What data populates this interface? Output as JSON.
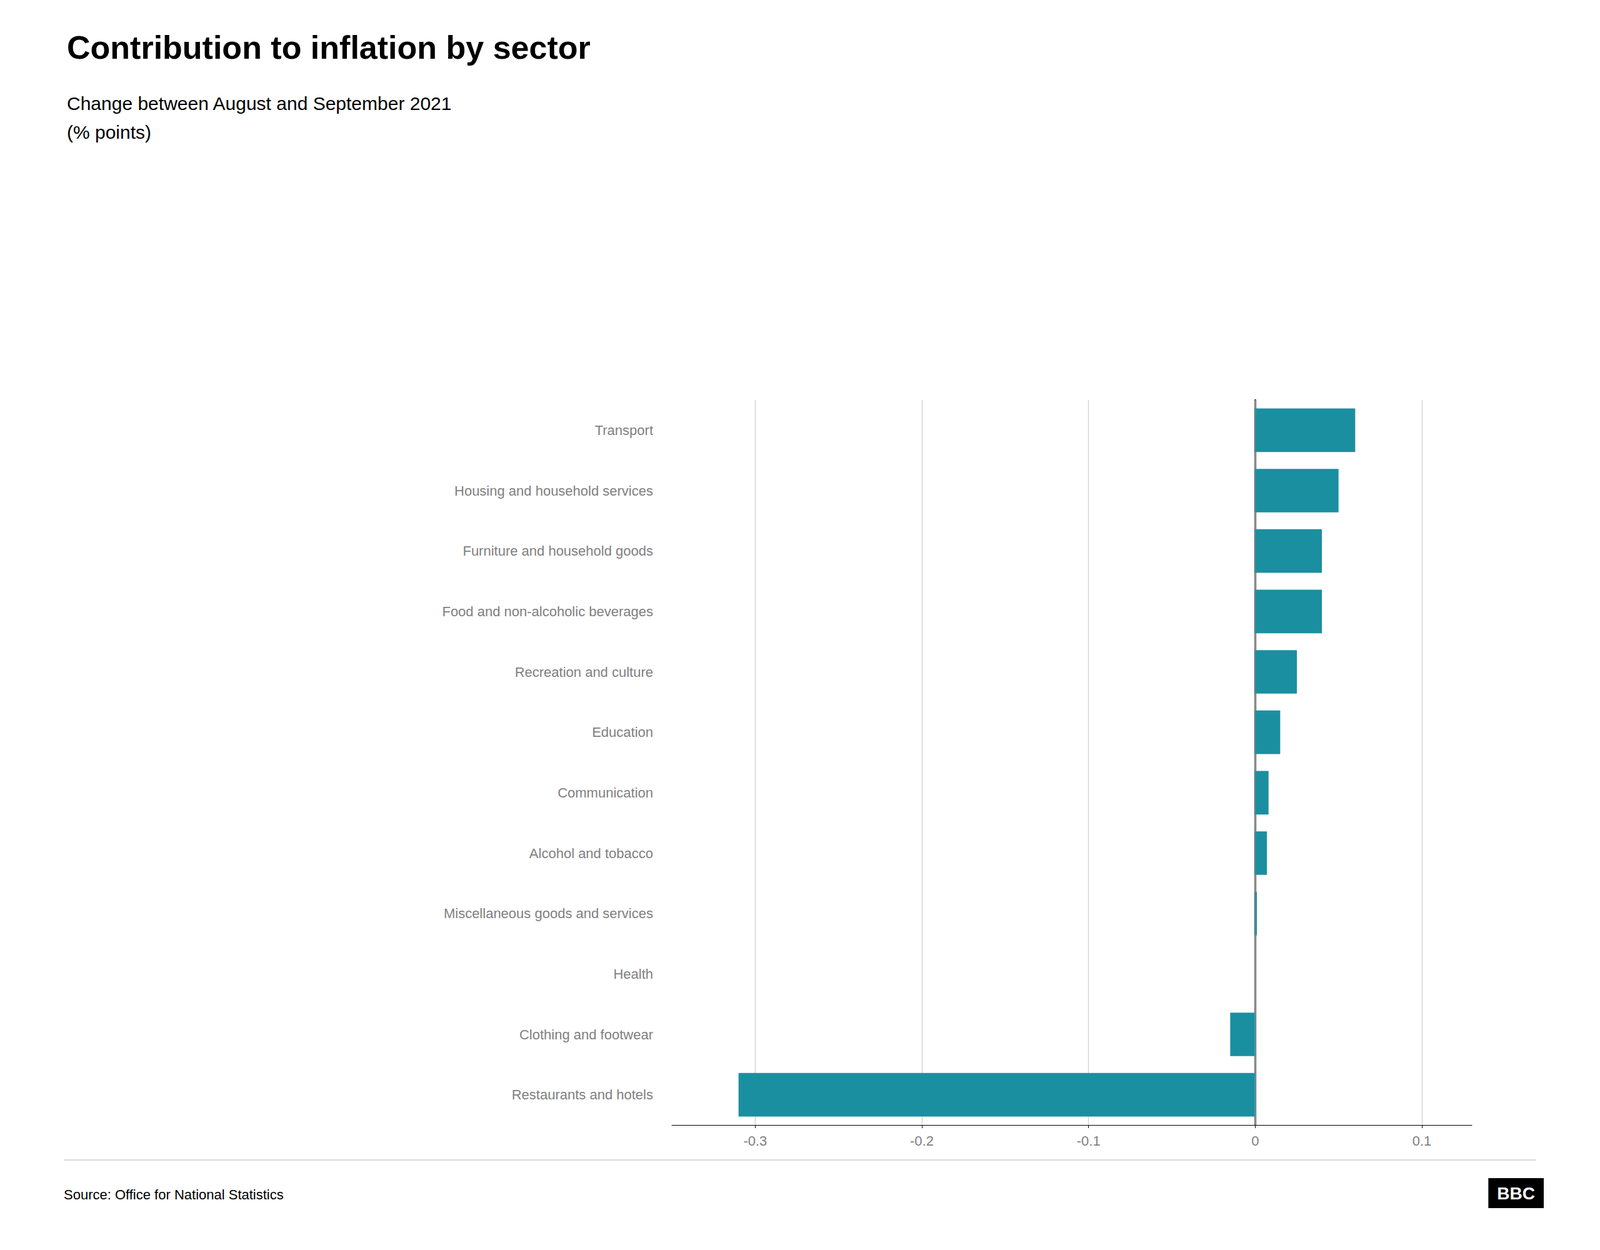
{
  "chart_data": {
    "type": "bar",
    "orientation": "horizontal",
    "title": "Contribution to inflation by sector",
    "subtitle": [
      "Change between August and September 2021",
      "(% points)"
    ],
    "categories": [
      "Transport",
      "Housing and household services",
      "Furniture and household goods",
      "Food and non-alcoholic beverages",
      "Recreation and culture",
      "Education",
      "Communication",
      "Alcohol and tobacco",
      "Miscellaneous goods and services",
      "Health",
      "Clothing and footwear",
      "Restaurants and hotels"
    ],
    "values": [
      0.06,
      0.05,
      0.04,
      0.04,
      0.025,
      0.015,
      0.008,
      0.007,
      0.001,
      0.0,
      -0.015,
      -0.31
    ],
    "color": "#1a8fa0",
    "xlim": [
      -0.35,
      0.13
    ],
    "xticks": [
      -0.3,
      -0.2,
      -0.1,
      0,
      0.1
    ],
    "grid": true,
    "annotations": [
      "Source: Office for National Statistics",
      "BBC"
    ]
  }
}
